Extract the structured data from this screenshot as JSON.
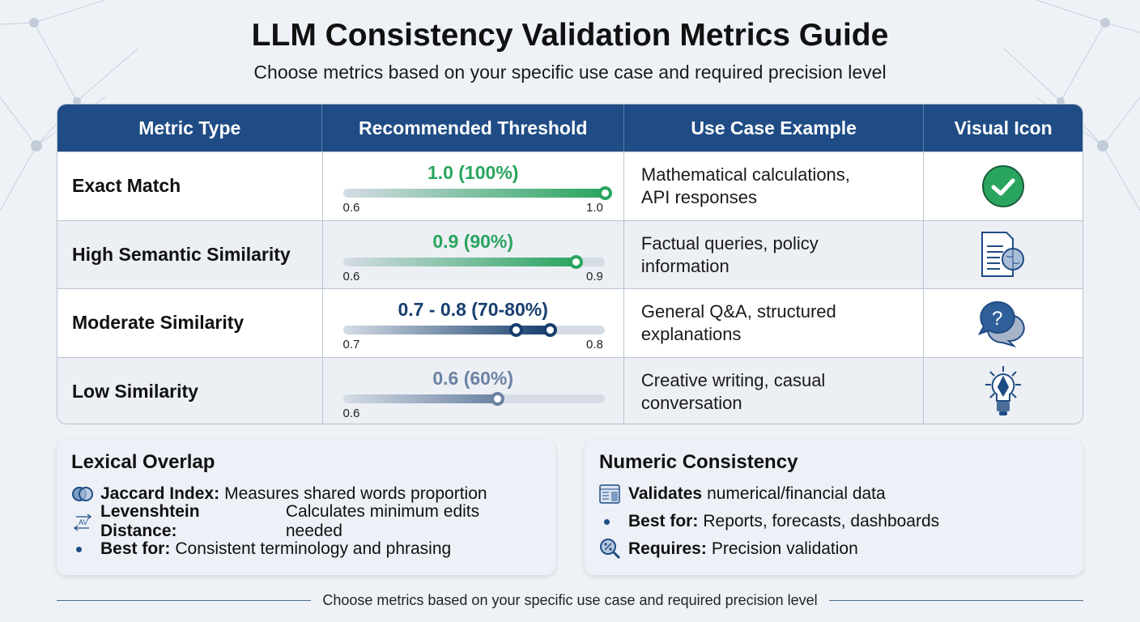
{
  "header": {
    "title": "LLM Consistency Validation Metrics Guide",
    "subtitle": "Choose metrics based on your specific use case and required precision level"
  },
  "table": {
    "columns": [
      "Metric Type",
      "Recommended Threshold",
      "Use Case Example",
      "Visual Icon"
    ],
    "rows": [
      {
        "metric": "Exact Match",
        "threshold": "1.0 (100%)",
        "min_label": "0.6",
        "max_label": "1.0",
        "levels": [
          1.0
        ],
        "color": "#2aa55f",
        "use_case": [
          "Mathematical calculations,",
          "API responses"
        ],
        "icon": "check-circle-icon"
      },
      {
        "metric": "High Semantic Similarity",
        "threshold": "0.9 (90%)",
        "min_label": "0.6",
        "max_label": "0.9",
        "levels": [
          0.89
        ],
        "color": "#2aa55f",
        "use_case": [
          "Factual queries, policy",
          "information"
        ],
        "icon": "document-brain-icon"
      },
      {
        "metric": "Moderate Similarity",
        "threshold": "0.7 - 0.8 (70-80%)",
        "min_label": "0.7",
        "max_label": "0.8",
        "levels": [
          0.66,
          0.79
        ],
        "color": "#173f6e",
        "use_case": [
          "General Q&A, structured",
          "explanations"
        ],
        "icon": "question-chat-icon"
      },
      {
        "metric": "Low Similarity",
        "threshold": "0.6 (60%)",
        "min_label": "0.6",
        "max_label": "",
        "levels": [
          0.59
        ],
        "color": "#6b83a3",
        "use_case": [
          "Creative writing, casual",
          "conversation"
        ],
        "icon": "lightbulb-pen-icon"
      }
    ]
  },
  "lexical": {
    "title": "Lexical Overlap",
    "items": [
      {
        "icon": "venn-icon",
        "bold": "Jaccard Index:",
        "text": "Measures shared words proportion"
      },
      {
        "icon": "text-transform-icon",
        "bold": "Levenshtein Distance:",
        "text": "Calculates minimum edits needed"
      },
      {
        "icon": "bullet",
        "bold": "Best for:",
        "text": "Consistent terminology and phrasing"
      }
    ]
  },
  "numeric": {
    "title": "Numeric Consistency",
    "items": [
      {
        "icon": "calculator-icon",
        "bold": "Validates",
        "text": "numerical/financial data"
      },
      {
        "icon": "bullet",
        "bold": "Best for:",
        "text": "Reports, forecasts, dashboards"
      },
      {
        "icon": "percent-search-icon",
        "bold": "Requires:",
        "text": "Precision validation"
      }
    ]
  },
  "footer": {
    "text": "Choose metrics based on your specific use case and required precision level"
  }
}
